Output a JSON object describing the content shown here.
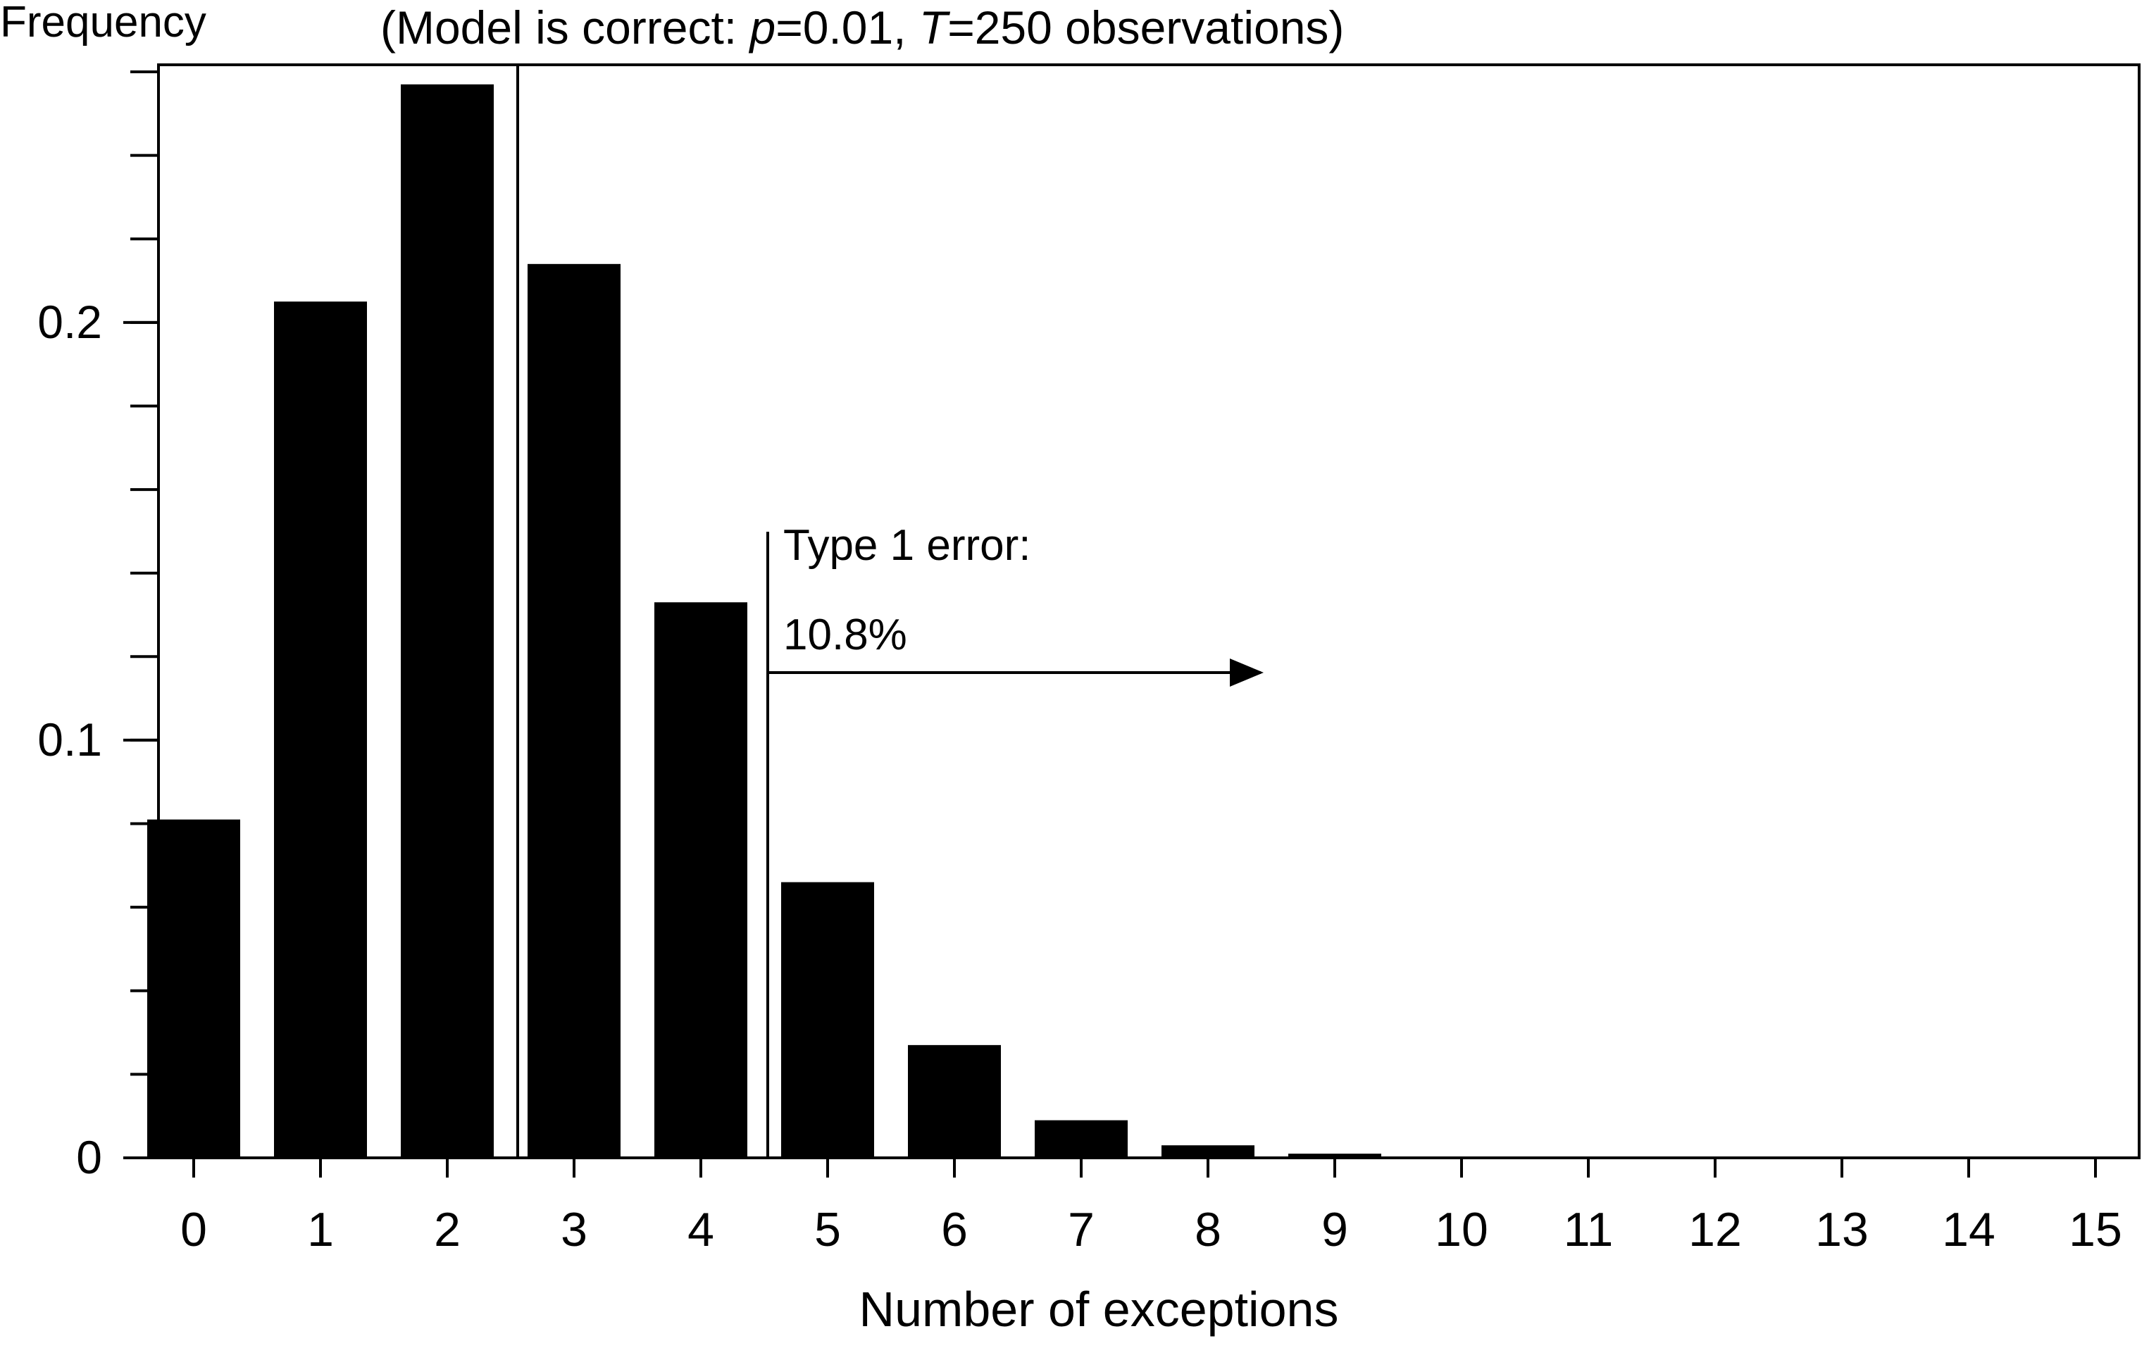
{
  "chart_data": {
    "type": "bar",
    "ylabel": "Frequency",
    "title_pre": "(Model is correct: ",
    "title_p": "p",
    "title_mid": "=0.01, ",
    "title_t": "T",
    "title_post": "=250 observations)",
    "xlabel": "Number of exceptions",
    "categories": [
      "0",
      "1",
      "2",
      "3",
      "4",
      "5",
      "6",
      "7",
      "8",
      "9",
      "10",
      "11",
      "12",
      "13",
      "14",
      "15"
    ],
    "values": [
      0.081,
      0.205,
      0.257,
      0.214,
      0.133,
      0.066,
      0.027,
      0.009,
      0.003,
      0.001,
      0.0,
      0.0,
      0.0,
      0.0,
      0.0,
      0.0
    ],
    "ylim": [
      0,
      0.26
    ],
    "yticks": [
      0,
      0.1,
      0.2
    ],
    "ytick_labels": [
      "0",
      "0.1",
      "0.2"
    ],
    "y_minor_step": 0.02,
    "cutoff_between": [
      2,
      3
    ],
    "annotation": {
      "line1": "Type 1 error:",
      "line2": "10.8%",
      "cutoff_between": [
        4,
        5
      ]
    }
  }
}
